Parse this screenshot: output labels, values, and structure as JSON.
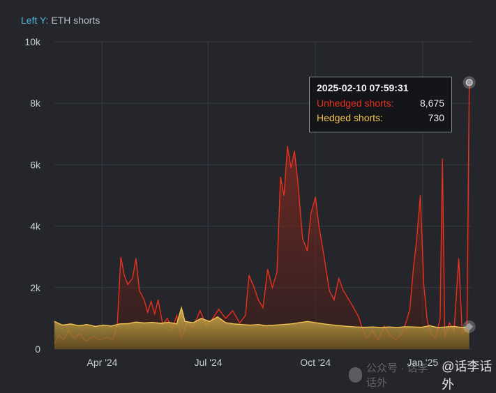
{
  "legend": {
    "axis_tag": "Left Y:",
    "series_tag": "ETH shorts"
  },
  "colors": {
    "unhedged": "#e8311e",
    "hedged": "#f2c451",
    "grid": "#373a40",
    "background": "#24262b"
  },
  "tooltip": {
    "date": "2025-02-10 07:59:31",
    "rows": [
      {
        "label": "Unhedged shorts:",
        "value": "8,675",
        "color": "#e8311e"
      },
      {
        "label": "Hedged shorts:",
        "value": "730",
        "color": "#f2c451"
      }
    ]
  },
  "watermark": {
    "text": "@话李话外",
    "ghost": "公众号 · 话李话外"
  },
  "chart_data": {
    "type": "area",
    "ylabel": "ETH shorts",
    "ylim": [
      0,
      10000
    ],
    "yticks": [
      0,
      2000,
      4000,
      6000,
      8000,
      10000
    ],
    "ytick_labels": [
      "0",
      "2k",
      "4k",
      "6k",
      "8k",
      "10k"
    ],
    "xticks": [
      {
        "date": "2024-04-01",
        "label": "Apr '24"
      },
      {
        "date": "2024-07-01",
        "label": "Jul '24"
      },
      {
        "date": "2024-10-01",
        "label": "Oct '24"
      },
      {
        "date": "2025-01-01",
        "label": "Jan '25"
      }
    ],
    "xlim": [
      "2024-02-20",
      "2025-02-12"
    ],
    "grid": true,
    "series": [
      {
        "name": "Unhedged shorts",
        "color": "#e8311e",
        "points": [
          [
            "2024-02-20",
            200
          ],
          [
            "2024-02-24",
            450
          ],
          [
            "2024-02-28",
            300
          ],
          [
            "2024-03-03",
            600
          ],
          [
            "2024-03-08",
            350
          ],
          [
            "2024-03-13",
            500
          ],
          [
            "2024-03-18",
            250
          ],
          [
            "2024-03-24",
            420
          ],
          [
            "2024-03-30",
            300
          ],
          [
            "2024-04-05",
            380
          ],
          [
            "2024-04-10",
            300
          ],
          [
            "2024-04-14",
            800
          ],
          [
            "2024-04-17",
            3000
          ],
          [
            "2024-04-20",
            2400
          ],
          [
            "2024-04-23",
            2100
          ],
          [
            "2024-04-27",
            2300
          ],
          [
            "2024-04-30",
            2950
          ],
          [
            "2024-05-03",
            1900
          ],
          [
            "2024-05-07",
            1600
          ],
          [
            "2024-05-10",
            1200
          ],
          [
            "2024-05-13",
            1550
          ],
          [
            "2024-05-16",
            1150
          ],
          [
            "2024-05-19",
            1600
          ],
          [
            "2024-05-23",
            800
          ],
          [
            "2024-05-27",
            1000
          ],
          [
            "2024-05-31",
            650
          ],
          [
            "2024-06-04",
            1100
          ],
          [
            "2024-06-08",
            350
          ],
          [
            "2024-06-13",
            900
          ],
          [
            "2024-06-18",
            700
          ],
          [
            "2024-06-24",
            1250
          ],
          [
            "2024-06-29",
            800
          ],
          [
            "2024-07-04",
            950
          ],
          [
            "2024-07-10",
            1300
          ],
          [
            "2024-07-16",
            1000
          ],
          [
            "2024-07-22",
            1250
          ],
          [
            "2024-07-28",
            850
          ],
          [
            "2024-08-02",
            1100
          ],
          [
            "2024-08-05",
            2400
          ],
          [
            "2024-08-09",
            2050
          ],
          [
            "2024-08-13",
            1600
          ],
          [
            "2024-08-17",
            1350
          ],
          [
            "2024-08-21",
            2600
          ],
          [
            "2024-08-25",
            2000
          ],
          [
            "2024-08-29",
            2500
          ],
          [
            "2024-09-01",
            5600
          ],
          [
            "2024-09-04",
            5000
          ],
          [
            "2024-09-07",
            6600
          ],
          [
            "2024-09-10",
            5900
          ],
          [
            "2024-09-13",
            6450
          ],
          [
            "2024-09-16",
            5400
          ],
          [
            "2024-09-20",
            3600
          ],
          [
            "2024-09-24",
            3200
          ],
          [
            "2024-09-27",
            4400
          ],
          [
            "2024-10-01",
            4950
          ],
          [
            "2024-10-04",
            4000
          ],
          [
            "2024-10-08",
            3100
          ],
          [
            "2024-10-13",
            1900
          ],
          [
            "2024-10-17",
            1600
          ],
          [
            "2024-10-21",
            2300
          ],
          [
            "2024-10-25",
            1900
          ],
          [
            "2024-10-29",
            1650
          ],
          [
            "2024-11-02",
            1400
          ],
          [
            "2024-11-07",
            1050
          ],
          [
            "2024-11-10",
            700
          ],
          [
            "2024-11-14",
            350
          ],
          [
            "2024-11-19",
            600
          ],
          [
            "2024-11-24",
            300
          ],
          [
            "2024-11-29",
            750
          ],
          [
            "2024-12-04",
            450
          ],
          [
            "2024-12-09",
            300
          ],
          [
            "2024-12-14",
            500
          ],
          [
            "2024-12-18",
            900
          ],
          [
            "2024-12-21",
            1300
          ],
          [
            "2024-12-24",
            2600
          ],
          [
            "2024-12-27",
            3600
          ],
          [
            "2024-12-30",
            5000
          ],
          [
            "2025-01-02",
            2100
          ],
          [
            "2025-01-05",
            900
          ],
          [
            "2025-01-08",
            500
          ],
          [
            "2025-01-12",
            350
          ],
          [
            "2025-01-16",
            1000
          ],
          [
            "2025-01-18",
            6200
          ],
          [
            "2025-01-20",
            400
          ],
          [
            "2025-01-24",
            850
          ],
          [
            "2025-01-28",
            600
          ],
          [
            "2025-02-01",
            2950
          ],
          [
            "2025-02-04",
            500
          ],
          [
            "2025-02-08",
            650
          ],
          [
            "2025-02-10",
            8675
          ]
        ]
      },
      {
        "name": "Hedged shorts",
        "color": "#f2c451",
        "points": [
          [
            "2024-02-20",
            900
          ],
          [
            "2024-02-27",
            780
          ],
          [
            "2024-03-05",
            820
          ],
          [
            "2024-03-12",
            760
          ],
          [
            "2024-03-19",
            800
          ],
          [
            "2024-03-26",
            740
          ],
          [
            "2024-04-02",
            780
          ],
          [
            "2024-04-09",
            750
          ],
          [
            "2024-04-16",
            820
          ],
          [
            "2024-04-23",
            830
          ],
          [
            "2024-04-30",
            880
          ],
          [
            "2024-05-07",
            850
          ],
          [
            "2024-05-14",
            870
          ],
          [
            "2024-05-21",
            840
          ],
          [
            "2024-05-28",
            870
          ],
          [
            "2024-06-04",
            820
          ],
          [
            "2024-06-08",
            1350
          ],
          [
            "2024-06-11",
            900
          ],
          [
            "2024-06-18",
            860
          ],
          [
            "2024-06-25",
            1000
          ],
          [
            "2024-07-02",
            900
          ],
          [
            "2024-07-09",
            1050
          ],
          [
            "2024-07-16",
            860
          ],
          [
            "2024-07-23",
            820
          ],
          [
            "2024-07-30",
            800
          ],
          [
            "2024-08-06",
            780
          ],
          [
            "2024-08-13",
            800
          ],
          [
            "2024-08-20",
            760
          ],
          [
            "2024-08-27",
            780
          ],
          [
            "2024-09-03",
            800
          ],
          [
            "2024-09-10",
            820
          ],
          [
            "2024-09-17",
            860
          ],
          [
            "2024-09-24",
            900
          ],
          [
            "2024-10-01",
            860
          ],
          [
            "2024-10-08",
            820
          ],
          [
            "2024-10-15",
            790
          ],
          [
            "2024-10-22",
            760
          ],
          [
            "2024-10-29",
            740
          ],
          [
            "2024-11-05",
            720
          ],
          [
            "2024-11-12",
            710
          ],
          [
            "2024-11-19",
            720
          ],
          [
            "2024-11-26",
            700
          ],
          [
            "2024-12-03",
            720
          ],
          [
            "2024-12-10",
            700
          ],
          [
            "2024-12-17",
            730
          ],
          [
            "2024-12-24",
            720
          ],
          [
            "2024-12-31",
            710
          ],
          [
            "2025-01-07",
            760
          ],
          [
            "2025-01-14",
            700
          ],
          [
            "2025-01-21",
            720
          ],
          [
            "2025-01-28",
            740
          ],
          [
            "2025-02-04",
            700
          ],
          [
            "2025-02-10",
            730
          ]
        ]
      }
    ],
    "hover": {
      "date": "2025-02-10",
      "series_values": [
        8675,
        730
      ]
    }
  }
}
